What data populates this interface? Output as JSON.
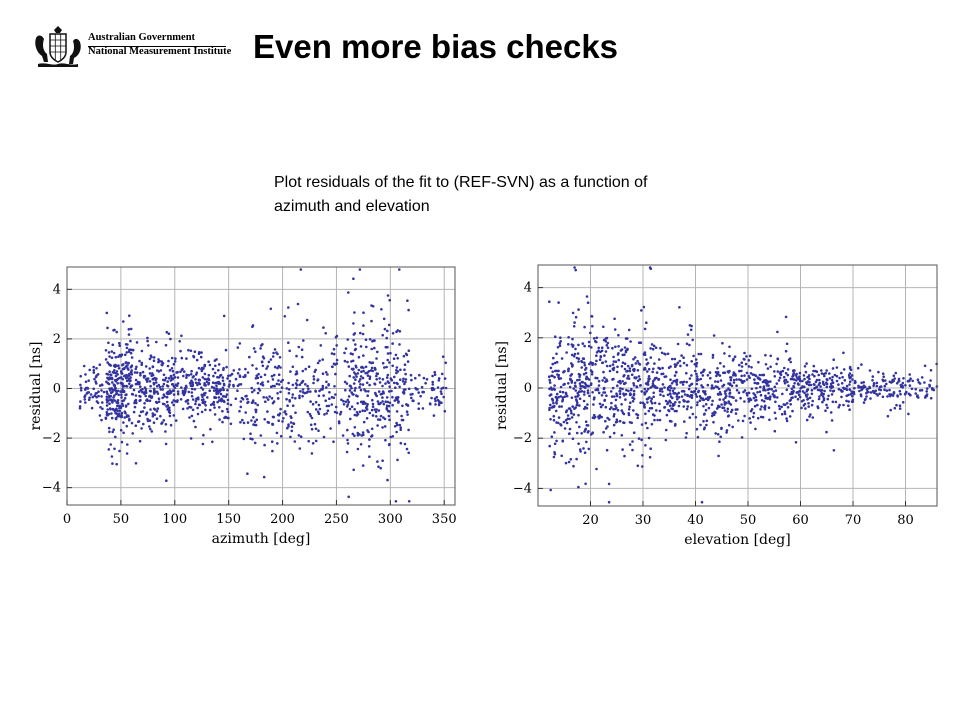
{
  "header": {
    "logo_line1": "Australian Government",
    "logo_line2": "National Measurement Institute",
    "crest_icon": "coat-of-arms-icon"
  },
  "title": "Even more bias checks",
  "description": "Plot residuals of the fit to (REF-SVN) as a function of azimuth and elevation",
  "colors": {
    "points": "#3333a0",
    "grid": "#b4b4b4",
    "frame": "#555555"
  },
  "chart_data": [
    {
      "type": "scatter",
      "title": "",
      "xlabel": "azimuth [deg]",
      "ylabel": "residual [ns]",
      "xlim": [
        0,
        360
      ],
      "ylim": [
        -4.7,
        4.9
      ],
      "x_ticks": [
        0,
        50,
        100,
        150,
        200,
        250,
        300,
        350
      ],
      "y_ticks": [
        -4,
        -2,
        0,
        2,
        4
      ],
      "y_tick_labels": [
        "−4",
        "−2",
        "0",
        "2",
        "4"
      ],
      "grid": true,
      "points_approx": 1500,
      "density_profile": [
        {
          "x_range": [
            10,
            35
          ],
          "y_sd": 0.45,
          "share": 0.04
        },
        {
          "x_range": [
            36,
            58
          ],
          "y_sd": 1.0,
          "share": 0.16
        },
        {
          "x_range": [
            58,
            95
          ],
          "y_sd": 0.9,
          "share": 0.14
        },
        {
          "x_range": [
            95,
            150
          ],
          "y_sd": 0.7,
          "share": 0.18
        },
        {
          "x_range": [
            150,
            170
          ],
          "y_sd": 0.9,
          "share": 0.03
        },
        {
          "x_range": [
            170,
            260
          ],
          "y_sd": 1.1,
          "share": 0.19
        },
        {
          "x_range": [
            260,
            318
          ],
          "y_sd": 1.3,
          "share": 0.22
        },
        {
          "x_range": [
            318,
            352
          ],
          "y_sd": 0.4,
          "share": 0.04
        }
      ]
    },
    {
      "type": "scatter",
      "title": "",
      "xlabel": "elevation [deg]",
      "ylabel": "residual [ns]",
      "xlim": [
        10,
        86
      ],
      "ylim": [
        -4.7,
        4.9
      ],
      "x_ticks": [
        20,
        30,
        40,
        50,
        60,
        70,
        80
      ],
      "y_ticks": [
        -4,
        -2,
        0,
        2,
        4
      ],
      "y_tick_labels": [
        "−4",
        "−2",
        "0",
        "2",
        "4"
      ],
      "grid": true,
      "points_approx": 1500,
      "density_profile": [
        {
          "x_range": [
            12,
            20
          ],
          "y_sd": 1.4,
          "share": 0.17
        },
        {
          "x_range": [
            20,
            32
          ],
          "y_sd": 1.2,
          "share": 0.22
        },
        {
          "x_range": [
            32,
            45
          ],
          "y_sd": 0.9,
          "share": 0.19
        },
        {
          "x_range": [
            45,
            58
          ],
          "y_sd": 0.75,
          "share": 0.17
        },
        {
          "x_range": [
            58,
            70
          ],
          "y_sd": 0.45,
          "share": 0.15
        },
        {
          "x_range": [
            70,
            86
          ],
          "y_sd": 0.35,
          "share": 0.1
        }
      ]
    }
  ]
}
